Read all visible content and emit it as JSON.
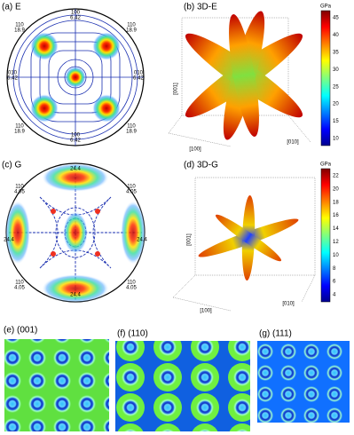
{
  "panel_a": {
    "label": "(a) E",
    "labels": [
      "100",
      "6.42",
      "110",
      "18.9",
      "110",
      "18.9",
      "010",
      "6.42",
      "010",
      "6.42",
      "110",
      "18.9",
      "110",
      "18.9",
      "100",
      "6.42"
    ]
  },
  "panel_b": {
    "label": "(b) 3D-E",
    "unit": "GPa",
    "ticks": [
      "45",
      "40",
      "35",
      "30",
      "25",
      "20",
      "15",
      "10"
    ],
    "axes": [
      "[001]",
      "[100]",
      "[010]"
    ]
  },
  "panel_c": {
    "label": "(c) G",
    "labels": [
      "24.4",
      "110",
      "4.05",
      "110",
      "4.05",
      "24.4",
      "24.4",
      "110",
      "4.05",
      "110",
      "4.05",
      "24.4"
    ]
  },
  "panel_d": {
    "label": "(d) 3D-G",
    "unit": "GPa",
    "ticks": [
      "22",
      "20",
      "18",
      "16",
      "14",
      "12",
      "10",
      "8",
      "6",
      "4"
    ],
    "axes": [
      "[001]",
      "[100]",
      "[010]"
    ]
  },
  "panel_e": {
    "label": "(e) (001)"
  },
  "panel_f": {
    "label": "(f) (110)"
  },
  "panel_g": {
    "label": "(g) (111)"
  }
}
